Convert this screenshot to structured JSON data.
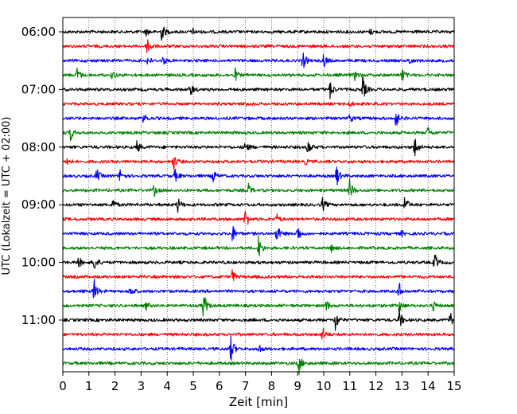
{
  "chart_data": {
    "type": "line",
    "subtype": "helicorder",
    "xlabel": "Zeit  [min]",
    "ylabel": "UTC (Lokalzeit = UTC + 02:00)",
    "xlim": [
      0,
      15
    ],
    "x_ticks": [
      "0",
      "1",
      "2",
      "3",
      "4",
      "5",
      "6",
      "7",
      "8",
      "9",
      "10",
      "11",
      "12",
      "13",
      "14",
      "15"
    ],
    "y_ticks": [
      "06:00",
      "07:00",
      "08:00",
      "09:00",
      "10:00",
      "11:00"
    ],
    "trace_interval_minutes": 15,
    "trace_count": 24,
    "grid": "vertical dotted lines at each minute",
    "color_cycle": [
      "#000000",
      "#ff0000",
      "#0000ff",
      "#008000"
    ],
    "traces": [
      {
        "start": "06:00",
        "color": "#000000",
        "events": [
          {
            "t": 3.8,
            "amp": 12
          },
          {
            "t": 3.2,
            "amp": 4
          },
          {
            "t": 5.0,
            "amp": 3
          },
          {
            "t": 11.8,
            "amp": 3
          }
        ]
      },
      {
        "start": "06:15",
        "color": "#ff0000",
        "events": [
          {
            "t": 3.25,
            "amp": 13
          }
        ]
      },
      {
        "start": "06:30",
        "color": "#0000ff",
        "events": [
          {
            "t": 3.25,
            "amp": 5
          },
          {
            "t": 3.85,
            "amp": 5
          },
          {
            "t": 9.2,
            "amp": 12
          },
          {
            "t": 10.0,
            "amp": 9
          },
          {
            "t": 13.3,
            "amp": 4
          }
        ]
      },
      {
        "start": "06:45",
        "color": "#008000",
        "events": [
          {
            "t": 0.55,
            "amp": 9
          },
          {
            "t": 1.9,
            "amp": 6
          },
          {
            "t": 6.6,
            "amp": 8
          },
          {
            "t": 11.2,
            "amp": 6
          },
          {
            "t": 13.0,
            "amp": 9
          }
        ]
      },
      {
        "start": "07:00",
        "color": "#000000",
        "events": [
          {
            "t": 4.9,
            "amp": 9
          },
          {
            "t": 10.25,
            "amp": 11
          },
          {
            "t": 11.5,
            "amp": 16
          }
        ]
      },
      {
        "start": "07:15",
        "color": "#ff0000",
        "events": [
          {
            "t": 7.0,
            "amp": 3
          },
          {
            "t": 11.0,
            "amp": 3
          }
        ]
      },
      {
        "start": "07:30",
        "color": "#0000ff",
        "events": [
          {
            "t": 3.1,
            "amp": 6
          },
          {
            "t": 11.0,
            "amp": 5
          },
          {
            "t": 12.75,
            "amp": 14
          }
        ]
      },
      {
        "start": "07:45",
        "color": "#008000",
        "events": [
          {
            "t": 0.3,
            "amp": 10
          },
          {
            "t": 14.0,
            "amp": 7
          }
        ]
      },
      {
        "start": "08:00",
        "color": "#000000",
        "events": [
          {
            "t": 2.85,
            "amp": 8
          },
          {
            "t": 7.0,
            "amp": 8
          },
          {
            "t": 9.4,
            "amp": 10
          },
          {
            "t": 13.5,
            "amp": 14
          }
        ]
      },
      {
        "start": "08:15",
        "color": "#ff0000",
        "events": [
          {
            "t": 0.15,
            "amp": 6
          },
          {
            "t": 4.25,
            "amp": 10
          },
          {
            "t": 9.3,
            "amp": 3
          }
        ]
      },
      {
        "start": "08:30",
        "color": "#0000ff",
        "events": [
          {
            "t": 1.3,
            "amp": 9
          },
          {
            "t": 2.2,
            "amp": 9
          },
          {
            "t": 4.3,
            "amp": 8
          },
          {
            "t": 5.75,
            "amp": 9
          },
          {
            "t": 10.5,
            "amp": 14
          }
        ]
      },
      {
        "start": "08:45",
        "color": "#008000",
        "events": [
          {
            "t": 3.5,
            "amp": 7
          },
          {
            "t": 7.1,
            "amp": 9
          },
          {
            "t": 11.0,
            "amp": 14
          }
        ]
      },
      {
        "start": "09:00",
        "color": "#000000",
        "events": [
          {
            "t": 1.9,
            "amp": 9
          },
          {
            "t": 4.4,
            "amp": 10
          },
          {
            "t": 9.95,
            "amp": 9
          },
          {
            "t": 13.1,
            "amp": 12
          }
        ]
      },
      {
        "start": "09:15",
        "color": "#ff0000",
        "events": [
          {
            "t": 7.0,
            "amp": 14
          },
          {
            "t": 8.2,
            "amp": 6
          }
        ]
      },
      {
        "start": "09:30",
        "color": "#0000ff",
        "events": [
          {
            "t": 6.5,
            "amp": 11
          },
          {
            "t": 8.2,
            "amp": 13
          },
          {
            "t": 9.0,
            "amp": 11
          },
          {
            "t": 13.0,
            "amp": 3
          }
        ]
      },
      {
        "start": "09:45",
        "color": "#008000",
        "events": [
          {
            "t": 7.5,
            "amp": 16
          },
          {
            "t": 10.3,
            "amp": 4
          }
        ]
      },
      {
        "start": "10:00",
        "color": "#000000",
        "events": [
          {
            "t": 0.6,
            "amp": 8
          },
          {
            "t": 1.2,
            "amp": 12
          },
          {
            "t": 14.25,
            "amp": 12
          }
        ]
      },
      {
        "start": "10:15",
        "color": "#ff0000",
        "events": [
          {
            "t": 6.5,
            "amp": 9
          }
        ]
      },
      {
        "start": "10:30",
        "color": "#0000ff",
        "events": [
          {
            "t": 1.2,
            "amp": 16
          },
          {
            "t": 2.6,
            "amp": 8
          },
          {
            "t": 12.9,
            "amp": 10
          }
        ]
      },
      {
        "start": "10:45",
        "color": "#008000",
        "events": [
          {
            "t": 3.2,
            "amp": 5
          },
          {
            "t": 5.4,
            "amp": 18
          },
          {
            "t": 10.1,
            "amp": 7
          },
          {
            "t": 12.9,
            "amp": 8
          },
          {
            "t": 14.2,
            "amp": 6
          }
        ]
      },
      {
        "start": "11:00",
        "color": "#000000",
        "events": [
          {
            "t": 10.45,
            "amp": 14
          },
          {
            "t": 12.9,
            "amp": 12
          },
          {
            "t": 14.85,
            "amp": 10
          }
        ]
      },
      {
        "start": "11:15",
        "color": "#ff0000",
        "events": [
          {
            "t": 9.95,
            "amp": 10
          }
        ]
      },
      {
        "start": "11:30",
        "color": "#0000ff",
        "events": [
          {
            "t": 6.45,
            "amp": 18
          },
          {
            "t": 7.5,
            "amp": 7
          }
        ]
      },
      {
        "start": "11:45",
        "color": "#008000",
        "events": [
          {
            "t": 9.05,
            "amp": 13
          }
        ]
      }
    ]
  }
}
